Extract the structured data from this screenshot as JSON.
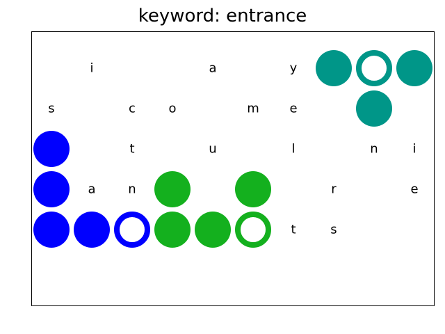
{
  "title": "keyword: entrance",
  "colors": {
    "blue": "#0000ff",
    "green": "#14b01e",
    "teal": "#009688"
  },
  "grid": {
    "cols": 10,
    "rows": 6
  },
  "letters": [
    {
      "col": 1,
      "row": 0,
      "text": "i"
    },
    {
      "col": 4,
      "row": 0,
      "text": "a"
    },
    {
      "col": 6,
      "row": 0,
      "text": "y"
    },
    {
      "col": 0,
      "row": 1,
      "text": "s"
    },
    {
      "col": 2,
      "row": 1,
      "text": "c"
    },
    {
      "col": 3,
      "row": 1,
      "text": "o"
    },
    {
      "col": 5,
      "row": 1,
      "text": "m"
    },
    {
      "col": 6,
      "row": 1,
      "text": "e"
    },
    {
      "col": 2,
      "row": 2,
      "text": "t"
    },
    {
      "col": 4,
      "row": 2,
      "text": "u"
    },
    {
      "col": 6,
      "row": 2,
      "text": "l"
    },
    {
      "col": 8,
      "row": 2,
      "text": "n"
    },
    {
      "col": 9,
      "row": 2,
      "text": "i"
    },
    {
      "col": 1,
      "row": 3,
      "text": "a"
    },
    {
      "col": 2,
      "row": 3,
      "text": "n"
    },
    {
      "col": 7,
      "row": 3,
      "text": "r"
    },
    {
      "col": 9,
      "row": 3,
      "text": "e"
    },
    {
      "col": 6,
      "row": 4,
      "text": "t"
    },
    {
      "col": 7,
      "row": 4,
      "text": "s"
    }
  ],
  "pieces": [
    {
      "col": 7,
      "row": 0,
      "color": "teal",
      "type": "filled"
    },
    {
      "col": 8,
      "row": 0,
      "color": "teal",
      "type": "ring"
    },
    {
      "col": 9,
      "row": 0,
      "color": "teal",
      "type": "filled"
    },
    {
      "col": 8,
      "row": 1,
      "color": "teal",
      "type": "filled"
    },
    {
      "col": 0,
      "row": 2,
      "color": "blue",
      "type": "filled"
    },
    {
      "col": 0,
      "row": 3,
      "color": "blue",
      "type": "filled"
    },
    {
      "col": 0,
      "row": 4,
      "color": "blue",
      "type": "filled"
    },
    {
      "col": 1,
      "row": 4,
      "color": "blue",
      "type": "filled"
    },
    {
      "col": 2,
      "row": 4,
      "color": "blue",
      "type": "ring"
    },
    {
      "col": 3,
      "row": 3,
      "color": "green",
      "type": "filled"
    },
    {
      "col": 5,
      "row": 3,
      "color": "green",
      "type": "filled"
    },
    {
      "col": 3,
      "row": 4,
      "color": "green",
      "type": "filled"
    },
    {
      "col": 4,
      "row": 4,
      "color": "green",
      "type": "filled"
    },
    {
      "col": 5,
      "row": 4,
      "color": "green",
      "type": "ring"
    }
  ]
}
